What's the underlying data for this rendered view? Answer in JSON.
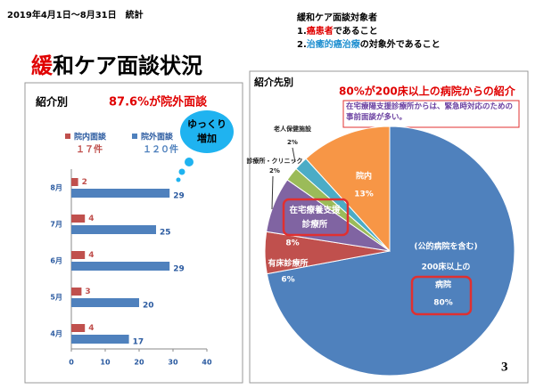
{
  "slide": {
    "period": "2019年4月1日～8月31日　統計",
    "title_highlight": "緩",
    "title_rest": "和ケア面談状況",
    "criteria_heading": "緩和ケア面談対象者",
    "criteria_1": [
      "1.",
      "癌患者",
      "であること"
    ],
    "criteria_2": [
      "2.",
      "治癒的癌治療",
      "の対象外であること"
    ],
    "page_number": "3"
  },
  "chart_data": [
    {
      "type": "hbar",
      "title": "紹介別",
      "annotation": "87.6%が院外面談",
      "callout_lines": [
        "ゆっくり",
        "増加"
      ],
      "categories": [
        "8月",
        "7月",
        "6月",
        "5月",
        "4月"
      ],
      "series": [
        {
          "name": "院内面談",
          "total_label": "１７件",
          "color": "#c0504d",
          "values": [
            2,
            4,
            4,
            3,
            4
          ]
        },
        {
          "name": "院外面談",
          "total_label": "１２０件",
          "color": "#4f81bd",
          "values": [
            29,
            25,
            29,
            20,
            17
          ]
        }
      ],
      "xlim": [
        0,
        40
      ],
      "xticks": [
        0,
        10,
        20,
        30,
        40
      ]
    },
    {
      "type": "pie",
      "title": "紹介先別",
      "annotation": "80%が200床以上の病院からの紹介",
      "note": "在宅療陽支援診療所からは、緊急時対応のための事前面談が多い。",
      "label_extra": [
        "(公的病院を含む)",
        "200床以上の"
      ],
      "categories": [
        "病院",
        "有床診療所",
        "在宅療養支援診療所",
        "診療所・クリニック",
        "老人保健施設",
        "院内"
      ],
      "values": [
        80,
        6,
        8,
        2,
        2,
        13
      ],
      "value_labels": [
        "80%",
        "6%",
        "8%",
        "2%",
        "2%",
        "13%"
      ],
      "colors": [
        "#4f81bd",
        "#c0504d",
        "#8064a2",
        "#9bbb59",
        "#4bacc6",
        "#f79646"
      ]
    }
  ]
}
